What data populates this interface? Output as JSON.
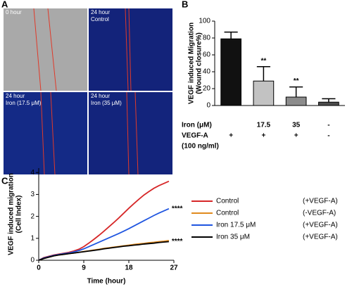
{
  "panel_labels": [
    "A",
    "B",
    "C"
  ],
  "images": [
    {
      "label": [
        "0 hour"
      ]
    },
    {
      "label": [
        "24 hour",
        "Control"
      ]
    },
    {
      "label": [
        "24 hour",
        "Iron (17.5 μM)"
      ]
    },
    {
      "label": [
        "24 hour",
        "Iron (35 μM)"
      ]
    }
  ],
  "chart_data": [
    {
      "type": "bar",
      "ylabel": [
        "VEGF induced Migration",
        "(Wound closure%)"
      ],
      "values": [
        79,
        29,
        10,
        4
      ],
      "errors": [
        8,
        17,
        12,
        4
      ],
      "colors": [
        "#111111",
        "#c2c2c2",
        "#8c8c8c",
        "#4d4d4d"
      ],
      "annotations": [
        null,
        "**",
        "**",
        null
      ],
      "ylim": [
        0,
        100
      ],
      "yticks": [
        0,
        20,
        40,
        60,
        80,
        100
      ],
      "x_table": {
        "row_labels": [
          "Iron (μM)",
          "VEGF-A",
          "(100 ng/ml)"
        ],
        "rows": [
          [
            null,
            "17.5",
            "35",
            "-"
          ],
          [
            "+",
            "+",
            "+",
            "-"
          ]
        ]
      }
    },
    {
      "type": "line",
      "xlabel": "Time (hour)",
      "ylabel": [
        "VEGF induced migration",
        "(Cell Index)"
      ],
      "x": [
        0,
        1,
        2,
        3,
        4,
        5,
        6,
        7,
        8,
        9,
        10,
        11,
        12,
        13,
        14,
        15,
        16,
        17,
        18,
        19,
        20,
        21,
        22,
        23,
        24,
        25,
        26
      ],
      "xlim": [
        0,
        27
      ],
      "xticks": [
        0,
        9,
        18,
        27
      ],
      "ylim": [
        0,
        4.2
      ],
      "yticks": [
        0,
        1,
        2,
        3,
        4
      ],
      "series": [
        {
          "name": "Control",
          "condition": "(+VEGF-A)",
          "color": "#d62728",
          "values": [
            0,
            0.12,
            0.18,
            0.24,
            0.28,
            0.32,
            0.36,
            0.42,
            0.5,
            0.62,
            0.78,
            0.95,
            1.13,
            1.32,
            1.52,
            1.72,
            1.93,
            2.15,
            2.37,
            2.58,
            2.78,
            2.97,
            3.13,
            3.28,
            3.4,
            3.5,
            3.6
          ]
        },
        {
          "name": "Control",
          "condition": "(-VEGF-A)",
          "color": "#e08a1e",
          "values": [
            0,
            0.08,
            0.14,
            0.2,
            0.24,
            0.27,
            0.3,
            0.33,
            0.36,
            0.4,
            0.43,
            0.47,
            0.5,
            0.54,
            0.57,
            0.6,
            0.63,
            0.66,
            0.69,
            0.72,
            0.75,
            0.77,
            0.8,
            0.82,
            0.85,
            0.87,
            0.9
          ]
        },
        {
          "name": "Iron 17.5 μM",
          "condition": "(+VEGF-A)",
          "color": "#1f55e0",
          "end_label": "****",
          "values": [
            0,
            0.1,
            0.16,
            0.22,
            0.26,
            0.3,
            0.33,
            0.38,
            0.44,
            0.52,
            0.62,
            0.72,
            0.82,
            0.92,
            1.02,
            1.12,
            1.22,
            1.33,
            1.44,
            1.56,
            1.68,
            1.8,
            1.92,
            2.04,
            2.15,
            2.25,
            2.35
          ]
        },
        {
          "name": "Iron 35 μM",
          "condition": "(+VEGF-A)",
          "color": "#000000",
          "end_label": "****",
          "values": [
            0,
            0.08,
            0.14,
            0.2,
            0.24,
            0.27,
            0.3,
            0.33,
            0.36,
            0.39,
            0.42,
            0.45,
            0.48,
            0.52,
            0.55,
            0.58,
            0.61,
            0.64,
            0.66,
            0.69,
            0.71,
            0.74,
            0.76,
            0.78,
            0.81,
            0.83,
            0.85
          ]
        }
      ]
    }
  ]
}
